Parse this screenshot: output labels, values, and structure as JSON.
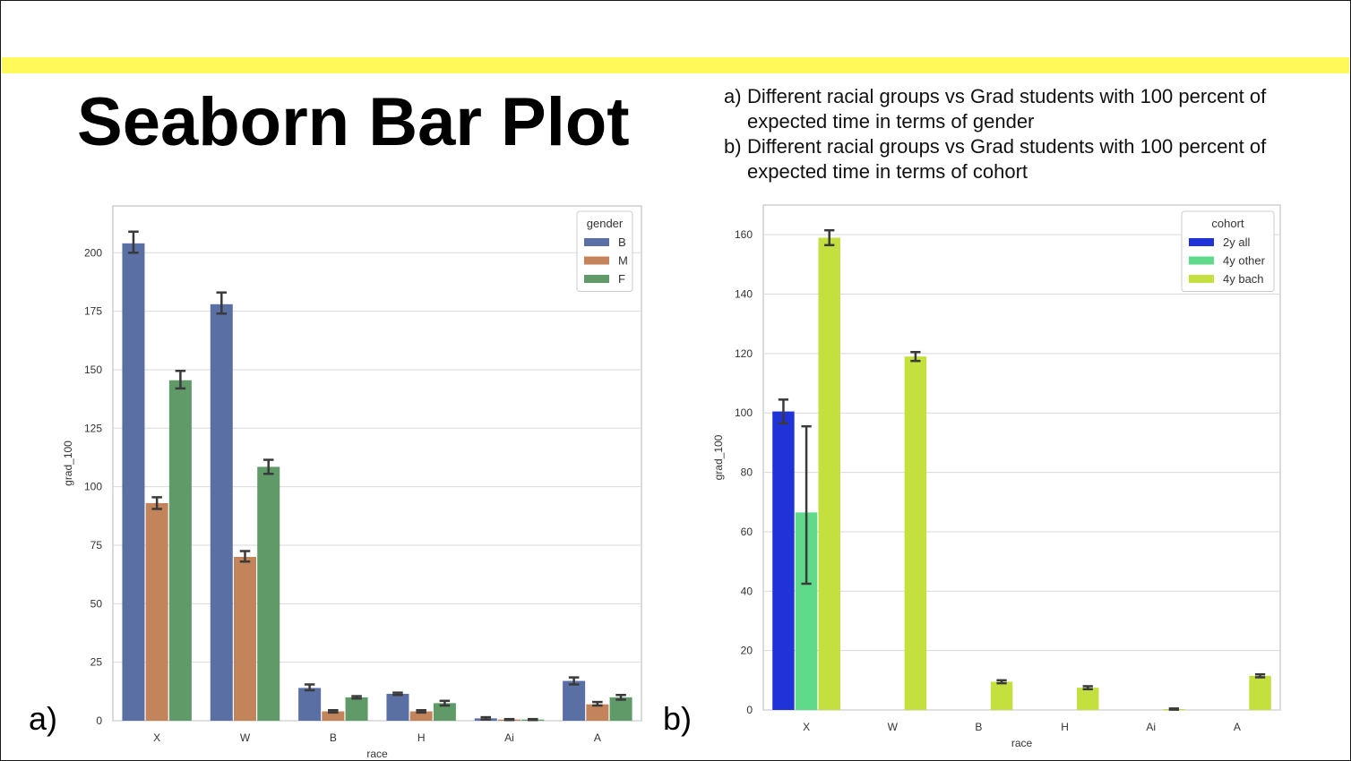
{
  "slide": {
    "title": "Seaborn Bar Plot",
    "descriptions": [
      {
        "letter": "a)",
        "text": "Different racial groups vs Grad students with 100 percent of expected time in terms of gender"
      },
      {
        "letter": "b)",
        "text": "Different racial groups vs Grad students with 100 percent of expected time in terms of cohort"
      }
    ],
    "panel_labels": [
      "a)",
      "b)"
    ],
    "accent_color": "#fff95a"
  },
  "chart_data": [
    {
      "type": "bar",
      "categories": [
        "X",
        "W",
        "B",
        "H",
        "Ai",
        "A"
      ],
      "xlabel": "race",
      "ylabel": "grad_100",
      "ylim": [
        0,
        220
      ],
      "yticks": [
        0,
        25,
        50,
        75,
        100,
        125,
        150,
        175,
        200
      ],
      "grid": true,
      "legend": {
        "title": "gender",
        "placement": "top-right"
      },
      "series": [
        {
          "name": "B",
          "color": "#5a6fa3",
          "values": [
            204,
            178,
            14,
            11.5,
            1,
            17
          ],
          "ci": [
            [
              200,
              209
            ],
            [
              174,
              183
            ],
            [
              13,
              15.5
            ],
            [
              11,
              12
            ],
            [
              0.5,
              1.5
            ],
            [
              15.5,
              18.5
            ]
          ]
        },
        {
          "name": "M",
          "color": "#c4845b",
          "values": [
            93,
            70,
            4,
            4,
            0.5,
            7
          ],
          "ci": [
            [
              90.5,
              95.5
            ],
            [
              68,
              72.5
            ],
            [
              3.5,
              4.5
            ],
            [
              3.5,
              4.5
            ],
            [
              0.3,
              0.7
            ],
            [
              6.5,
              8
            ]
          ]
        },
        {
          "name": "F",
          "color": "#5f9a68",
          "values": [
            145.5,
            108.5,
            10,
            7.5,
            0.5,
            10
          ],
          "ci": [
            [
              142,
              149.5
            ],
            [
              105.5,
              111.5
            ],
            [
              9.5,
              10.5
            ],
            [
              6.5,
              8.5
            ],
            [
              0.3,
              0.7
            ],
            [
              9,
              11
            ]
          ]
        }
      ]
    },
    {
      "type": "bar",
      "categories": [
        "X",
        "W",
        "B",
        "H",
        "Ai",
        "A"
      ],
      "xlabel": "race",
      "ylabel": "grad_100",
      "ylim": [
        0,
        170
      ],
      "yticks": [
        0,
        20,
        40,
        60,
        80,
        100,
        120,
        140,
        160
      ],
      "grid": true,
      "legend": {
        "title": "cohort",
        "placement": "top-right"
      },
      "series": [
        {
          "name": "2y all",
          "color": "#1f33d8",
          "values": [
            100.5,
            null,
            null,
            null,
            null,
            null
          ],
          "ci": [
            [
              96.5,
              104.5
            ],
            null,
            null,
            null,
            null,
            null
          ]
        },
        {
          "name": "4y other",
          "color": "#5fd98a",
          "values": [
            66.5,
            null,
            null,
            null,
            null,
            null
          ],
          "ci": [
            [
              42.5,
              95.5
            ],
            null,
            null,
            null,
            null,
            null
          ]
        },
        {
          "name": "4y bach",
          "color": "#c4e03f",
          "values": [
            159,
            119,
            9.5,
            7.5,
            0.3,
            11.5
          ],
          "ci": [
            [
              156.5,
              161.5
            ],
            [
              117.5,
              120.5
            ],
            [
              9,
              10
            ],
            [
              7,
              8
            ],
            [
              0.1,
              0.5
            ],
            [
              11,
              12
            ]
          ]
        }
      ]
    }
  ]
}
